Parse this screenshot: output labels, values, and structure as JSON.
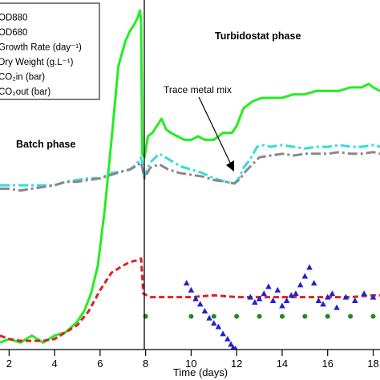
{
  "chart_data": {
    "type": "line",
    "xlabel": "Time (days)",
    "xlim": [
      1.6,
      18.3
    ],
    "ylim": [
      0,
      100
    ],
    "x_ticks": [
      2,
      4,
      6,
      8,
      10,
      12,
      14,
      16,
      18
    ],
    "grid": false,
    "legend": {
      "placement": "top-left",
      "entries": [
        "OD880",
        "OD680",
        "Growth Rate (day⁻¹)",
        "Dry Weight (g.L⁻¹)",
        "CO₂in (bar)",
        "CO₂out (bar)"
      ]
    },
    "annotations": {
      "batch": "Batch phase",
      "turbidostat": "Turbidostat phase",
      "trace_metal": "Trace metal mix"
    },
    "phase_split_x": 7.85,
    "series": [
      {
        "name": "OD880",
        "color": "#22ee22",
        "style": "solid",
        "x": [
          1.6,
          2.0,
          2.5,
          3.0,
          3.5,
          4.0,
          4.5,
          5.0,
          5.3,
          5.6,
          5.9,
          6.2,
          6.5,
          6.8,
          7.1,
          7.3,
          7.5,
          7.65,
          7.75,
          7.8,
          7.85,
          7.95,
          8.1,
          8.3,
          8.5,
          8.7,
          8.9,
          9.1,
          9.4,
          9.7,
          10.0,
          10.3,
          10.6,
          11.0,
          11.4,
          11.8,
          12.0,
          12.3,
          12.7,
          13.1,
          13.5,
          14.0,
          14.5,
          15.0,
          15.5,
          16.0,
          16.5,
          17.0,
          17.5,
          17.8,
          18.0,
          18.3
        ],
        "y": [
          2,
          3,
          2,
          4,
          2,
          4,
          5,
          8,
          11,
          16,
          24,
          40,
          60,
          81,
          88,
          91,
          93,
          95,
          97,
          94,
          56,
          55,
          61,
          62,
          64,
          66,
          63,
          62,
          61,
          60,
          60,
          61,
          60,
          60,
          62,
          62,
          64,
          69,
          71,
          72,
          72,
          72,
          73,
          73,
          74,
          74,
          74,
          75,
          75,
          76,
          75,
          74
        ]
      },
      {
        "name": "OD680",
        "color": "#dd2222",
        "style": "dashed",
        "x": [
          1.6,
          2.0,
          2.5,
          3.0,
          3.5,
          4.0,
          4.5,
          5.0,
          5.5,
          6.0,
          6.5,
          7.0,
          7.3,
          7.6,
          7.8,
          7.9,
          8.2,
          9.0,
          10.0,
          11.0,
          12.0,
          13.0,
          14.0,
          15.0,
          16.0,
          17.0,
          18.0,
          18.3
        ],
        "y": [
          4,
          3,
          2.5,
          2.5,
          2.5,
          3,
          5,
          7,
          11,
          17,
          22,
          24,
          25,
          25.5,
          26,
          16,
          15,
          15,
          15,
          15.5,
          15,
          15,
          15,
          15,
          15,
          15,
          15.5,
          15.5
        ]
      },
      {
        "name": "Growth Rate (day⁻¹)",
        "color": "#2222cc",
        "style": "markers-triangle",
        "x": [
          9.8,
          10.0,
          10.2,
          10.4,
          10.6,
          10.8,
          11.0,
          11.2,
          11.4,
          11.6,
          11.75,
          11.85,
          11.95,
          12.6,
          12.8,
          13.0,
          13.2,
          13.4,
          13.6,
          13.8,
          14.0,
          14.2,
          14.4,
          14.6,
          14.8,
          15.0,
          15.2,
          15.4,
          15.6,
          15.8,
          16.0,
          16.2,
          16.4,
          16.8,
          17.2,
          17.6,
          18.0
        ],
        "y": [
          19,
          17,
          14.5,
          13,
          11,
          9,
          7.5,
          6.5,
          4.5,
          3,
          1.5,
          0.5,
          0.2,
          15,
          13.5,
          14.5,
          16,
          18,
          14,
          17,
          12.5,
          14,
          15.5,
          16,
          18.5,
          21,
          23.5,
          19,
          14,
          13,
          15,
          16,
          12,
          15,
          14,
          16,
          15
        ]
      },
      {
        "name": "Dry Weight (g.L⁻¹)",
        "color": "#228822",
        "style": "markers-circle",
        "x": [
          8.0,
          10.0,
          11.0,
          12.0,
          13.0,
          14.0,
          15.0,
          16.0,
          17.0,
          18.0
        ],
        "y": [
          9.5,
          9.5,
          9.5,
          9.5,
          9.5,
          9.5,
          9.5,
          9.5,
          9.5,
          9.5
        ]
      },
      {
        "name": "CO₂in (bar)",
        "color": "#33dddd",
        "style": "dash-dot",
        "x": [
          1.6,
          2.0,
          2.5,
          3.0,
          3.5,
          4.0,
          4.5,
          5.0,
          5.5,
          6.0,
          6.5,
          7.0,
          7.3,
          7.6,
          7.8,
          7.95,
          8.2,
          8.6,
          9.0,
          9.5,
          10.0,
          10.5,
          11.0,
          11.5,
          11.9,
          12.1,
          12.3,
          12.6,
          12.9,
          13.2,
          13.5,
          14.0,
          14.5,
          15.0,
          15.5,
          16.0,
          16.5,
          17.0,
          17.5,
          18.0,
          18.3
        ],
        "y": [
          47,
          47,
          47,
          47,
          47,
          47,
          48,
          48.5,
          49,
          49,
          50.5,
          51,
          51.5,
          53,
          55,
          49.5,
          53.5,
          56,
          54.5,
          52.5,
          51.5,
          50.5,
          49,
          48,
          47.5,
          49,
          52,
          54.5,
          58,
          58.5,
          58,
          58.5,
          58,
          57.5,
          58,
          58,
          58.5,
          58,
          58,
          58.5,
          58
        ]
      },
      {
        "name": "CO₂out (bar)",
        "color": "#888888",
        "style": "dash-dot",
        "x": [
          1.6,
          2.0,
          2.5,
          3.0,
          3.5,
          4.0,
          4.5,
          5.0,
          5.5,
          6.0,
          6.5,
          7.0,
          7.3,
          7.6,
          7.8,
          7.95,
          8.2,
          8.6,
          9.0,
          9.5,
          10.0,
          10.5,
          11.0,
          11.5,
          11.9,
          12.1,
          12.4,
          12.7,
          13.0,
          13.5,
          14.0,
          14.5,
          15.0,
          15.5,
          16.0,
          16.5,
          17.0,
          17.5,
          18.0,
          18.3
        ],
        "y": [
          46,
          46,
          45.5,
          46,
          46.5,
          47,
          48,
          48,
          48.5,
          49,
          50,
          51,
          51.5,
          52.5,
          53.5,
          49,
          52,
          53,
          51.5,
          50.5,
          50,
          49.5,
          48.5,
          48,
          47.5,
          48.5,
          51,
          53,
          55,
          55.5,
          56,
          55.5,
          56,
          56,
          56,
          56.5,
          56,
          56,
          56.5,
          56
        ]
      }
    ]
  }
}
